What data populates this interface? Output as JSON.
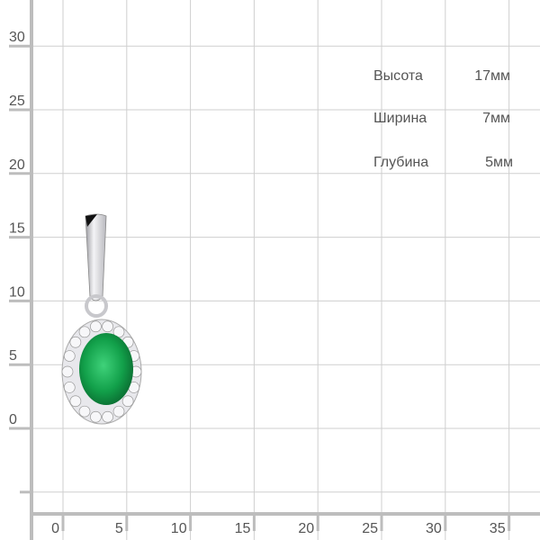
{
  "axes": {
    "y_ticks": [
      "0",
      "5",
      "10",
      "15",
      "20",
      "25",
      "30"
    ],
    "x_ticks": [
      "0",
      "5",
      "10",
      "15",
      "20",
      "25",
      "30",
      "35"
    ]
  },
  "dimensions": [
    {
      "name": "Высота",
      "value": "17мм"
    },
    {
      "name": "Ширина",
      "value": "7мм"
    },
    {
      "name": "Глубина",
      "value": "5мм"
    }
  ],
  "product": {
    "stone_color": "#12a04a",
    "metal_color": "#d8d8dc"
  }
}
